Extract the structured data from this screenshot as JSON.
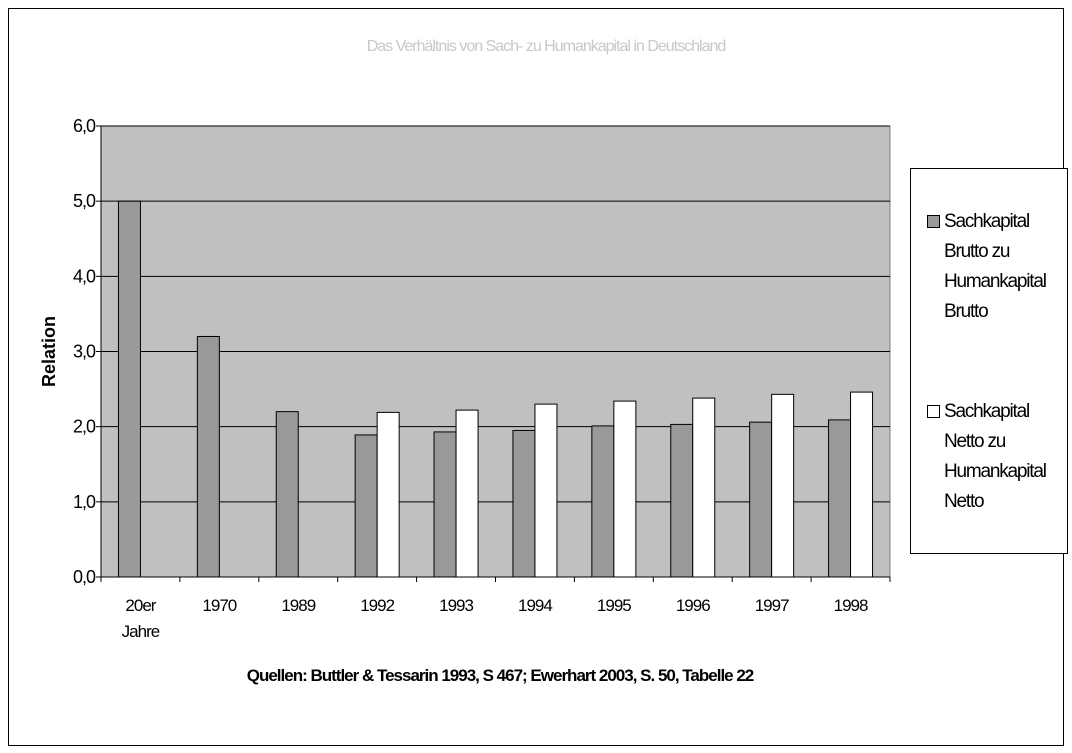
{
  "chart_data": {
    "type": "bar",
    "title": "Das Verhältnis von Sach- zu Humankapital in Deutschland",
    "ylabel": "Relation",
    "source": "Quellen: Buttler & Tessarin 1993, S 467; Ewerhart 2003, S. 50, Tabelle 22",
    "categories": [
      "20er Jahre",
      "1970",
      "1989",
      "1992",
      "1993",
      "1994",
      "1995",
      "1996",
      "1997",
      "1998"
    ],
    "series": [
      {
        "name": "Sachkapital Brutto zu Humankapital Brutto",
        "color": "#999999",
        "values": [
          5.0,
          3.2,
          2.2,
          1.89,
          1.93,
          1.95,
          2.01,
          2.03,
          2.06,
          2.09
        ]
      },
      {
        "name": "Sachkapital Netto zu Humankapital Netto",
        "color": "#ffffff",
        "values": [
          null,
          null,
          null,
          2.19,
          2.22,
          2.3,
          2.34,
          2.38,
          2.43,
          2.46
        ]
      }
    ],
    "ylim": [
      0,
      6
    ],
    "yticks": [
      {
        "value": 0,
        "label": "0,0"
      },
      {
        "value": 1,
        "label": "1,0"
      },
      {
        "value": 2,
        "label": "2,0"
      },
      {
        "value": 3,
        "label": "3,0"
      },
      {
        "value": 4,
        "label": "4,0"
      },
      {
        "value": 5,
        "label": "5,0"
      },
      {
        "value": 6,
        "label": "6,0"
      }
    ],
    "grid": true,
    "plot_background": "#c0c0c0",
    "legend": "right"
  }
}
